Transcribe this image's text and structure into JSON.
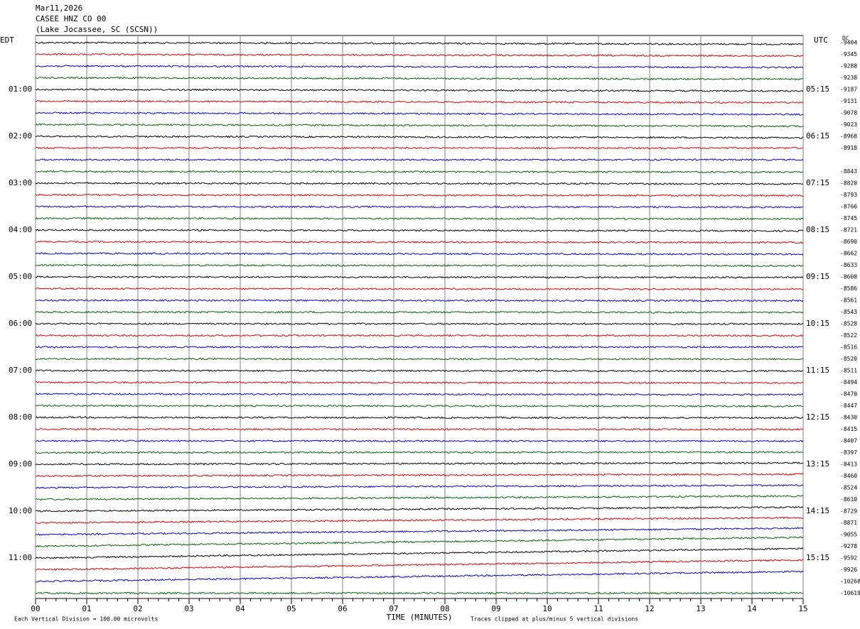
{
  "chart_data": {
    "type": "helicorder",
    "title": "Mar11,2026",
    "subtitle": "CASEE HNZ CO 00",
    "location": "(Lake Jocassee, SC (SCSN))",
    "left_axis_label": "EDT",
    "right_axis_label": "UTC",
    "dc_label": "DC",
    "x_label": "TIME (MINUTES)",
    "note_left": "Each Vertical Division =  100.00 microvolts",
    "note_right": "Traces clipped at plus/minus 5 vertical divisions",
    "xlim": [
      0,
      15
    ],
    "xticks": [
      {
        "value": 0,
        "label": "00"
      },
      {
        "value": 1,
        "label": "01"
      },
      {
        "value": 2,
        "label": "02"
      },
      {
        "value": 3,
        "label": "03"
      },
      {
        "value": 4,
        "label": "04"
      },
      {
        "value": 5,
        "label": "05"
      },
      {
        "value": 6,
        "label": "06"
      },
      {
        "value": 7,
        "label": "07"
      },
      {
        "value": 8,
        "label": "08"
      },
      {
        "value": 9,
        "label": "09"
      },
      {
        "value": 10,
        "label": "10"
      },
      {
        "value": 11,
        "label": "11"
      },
      {
        "value": 12,
        "label": "12"
      },
      {
        "value": 13,
        "label": "13"
      },
      {
        "value": 14,
        "label": "14"
      },
      {
        "value": 15,
        "label": "15"
      }
    ],
    "edt_labels": [
      "01:00",
      "02:00",
      "03:00",
      "04:00",
      "05:00",
      "06:00",
      "07:00",
      "08:00",
      "09:00",
      "10:00",
      "11:00"
    ],
    "utc_labels": [
      "05:15",
      "06:15",
      "07:15",
      "08:15",
      "09:15",
      "10:15",
      "11:15",
      "12:15",
      "13:15",
      "14:15",
      "15:15"
    ],
    "dc_values": [
      -9404,
      -9345,
      -9288,
      -9238,
      -9187,
      -9131,
      -9078,
      -9023,
      -8968,
      -8918,
      null,
      -8843,
      -8820,
      -8793,
      -8766,
      -8745,
      -8721,
      -8690,
      -8662,
      -8633,
      -8608,
      -8586,
      -8561,
      -8543,
      -8528,
      -8522,
      -8516,
      -8520,
      -8511,
      -8494,
      -8470,
      -8447,
      -8430,
      -8415,
      -8407,
      -8397,
      -8413,
      -8460,
      -8524,
      -8610,
      -8729,
      -8871,
      -9055,
      -9278,
      -9592,
      -9926,
      -10268,
      -10619
    ],
    "trace_colors": [
      "#000000",
      "#e00000",
      "#0000d0",
      "#006400"
    ],
    "grid": true
  }
}
